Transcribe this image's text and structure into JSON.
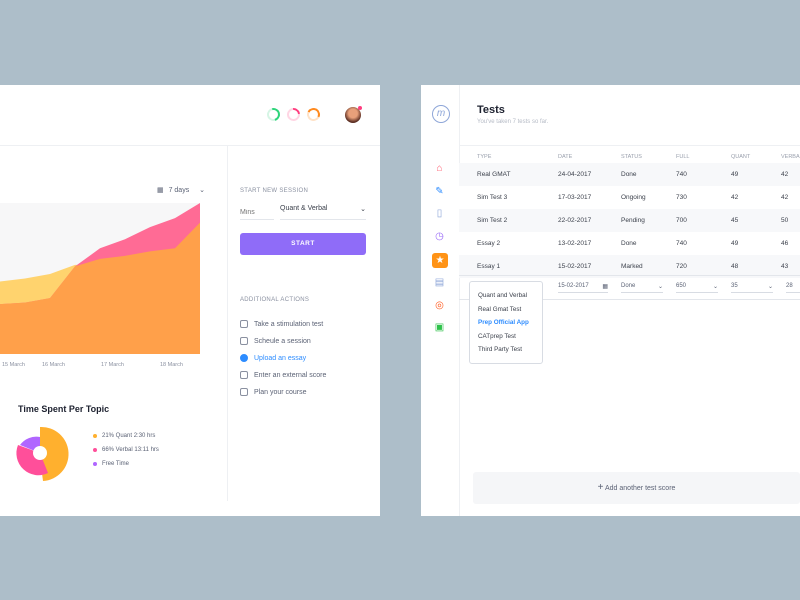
{
  "dashboard": {
    "date_range": "7 days",
    "progress_rings": [
      {
        "color": "#2ed47a"
      },
      {
        "color": "#ff3d7f"
      },
      {
        "color": "#ff8a1f"
      }
    ],
    "session": {
      "heading": "START NEW SESSION",
      "mins_placeholder": "Mins",
      "topic": "Quant & Verbal",
      "start": "START"
    },
    "actions_heading": "ADDITIONAL ACTIONS",
    "actions": [
      {
        "label": "Take a stimulation test",
        "icon": "stopwatch-icon"
      },
      {
        "label": "Scheule a session",
        "icon": "calendar-icon"
      },
      {
        "label": "Upload an essay",
        "icon": "upload-icon",
        "active": true
      },
      {
        "label": "Enter an external score",
        "icon": "keyboard-icon"
      },
      {
        "label": "Plan your course",
        "icon": "document-icon"
      }
    ],
    "topic_title": "Time Spent Per Topic",
    "legend": [
      {
        "label": "21% Quant 2:30 hrs",
        "color": "#ffb02e"
      },
      {
        "label": "66% Verbal 13:11 hrs",
        "color": "#ff4f9a"
      },
      {
        "label": "Free Time",
        "color": "#b066ff"
      }
    ]
  },
  "chart_data": {
    "type": "area",
    "x_ticks": [
      "15 March",
      "16 March",
      "17 March",
      "18 March"
    ],
    "x": [
      0,
      1,
      2,
      3,
      4,
      5,
      6,
      7,
      8
    ],
    "series": [
      {
        "color": "#ffd36e",
        "values": [
          48,
          50,
          53,
          59,
          59,
          61,
          64,
          68,
          87
        ]
      },
      {
        "color": "#ff6b95",
        "values": [
          33,
          34,
          37,
          58,
          70,
          76,
          84,
          90,
          100
        ]
      },
      {
        "color": "#ffa04a",
        "values": [
          33,
          34,
          37,
          58,
          63,
          65,
          68,
          70,
          87
        ]
      }
    ],
    "grid": false
  },
  "tests": {
    "title": "Tests",
    "subtitle": "You've taken 7 tests so far.",
    "columns": [
      "TYPE",
      "DATE",
      "STATUS",
      "FULL",
      "QUANT",
      "VERBAL"
    ],
    "rows": [
      [
        "Real GMAT",
        "24-04-2017",
        "Done",
        "740",
        "49",
        "42"
      ],
      [
        "Sim Test 3",
        "17-03-2017",
        "Ongoing",
        "730",
        "42",
        "42"
      ],
      [
        "Sim Test 2",
        "22-02-2017",
        "Pending",
        "700",
        "45",
        "50"
      ],
      [
        "Essay 2",
        "13-02-2017",
        "Done",
        "740",
        "49",
        "46"
      ],
      [
        "Essay 1",
        "15-02-2017",
        "Marked",
        "720",
        "48",
        "43"
      ]
    ],
    "edit_row": {
      "date": "15-02-2017",
      "status": "Done",
      "full": "650",
      "quant": "35",
      "verbal": "28"
    },
    "type_options": [
      "Quant and Verbal",
      "Real Gmat Test",
      "Prep Official App",
      "CATprep Test",
      "Third Party Test"
    ],
    "selected_option": "Prep Official App",
    "add_label": "Add another test score"
  }
}
